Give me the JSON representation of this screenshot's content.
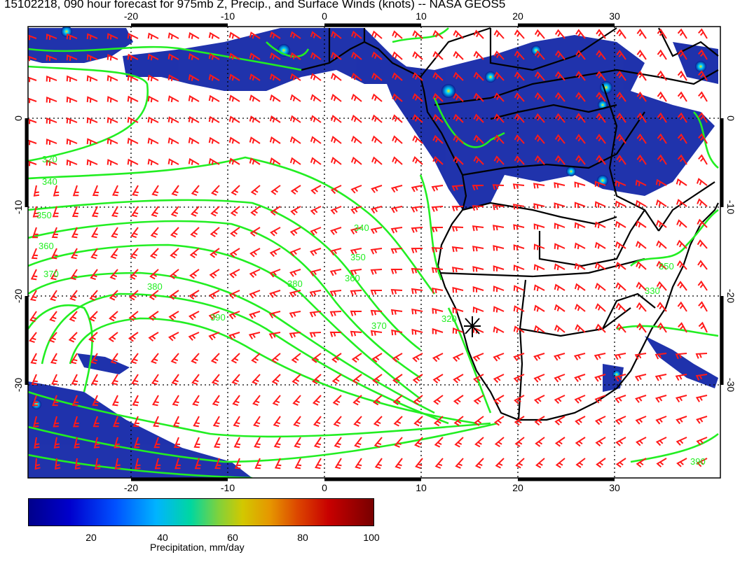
{
  "title": "15102218, 090 hour forecast for 975mb Z, Precip., and Surface Winds (knots) -- NASA GEOS5",
  "map": {
    "lon_range": [
      -30,
      41
    ],
    "lat_range": [
      -40,
      10
    ],
    "top_lon_ticks": [
      "-20",
      "-10",
      "0",
      "10",
      "20",
      "30"
    ],
    "bottom_lon_ticks": [
      "-20",
      "-10",
      "0",
      "10",
      "20",
      "30"
    ],
    "left_lat_ticks": [
      "0",
      "-10",
      "-20",
      "-30"
    ],
    "right_lat_ticks": [
      "0",
      "-10",
      "-20",
      "-30"
    ],
    "contour_labels": [
      "320",
      "340",
      "350",
      "360",
      "370",
      "380",
      "390",
      "340",
      "350",
      "360",
      "370",
      "320",
      "380",
      "330",
      "350",
      "390"
    ],
    "colors": {
      "contour": "#22ee22",
      "wind_barb": "#ff1a1a",
      "coast": "#000000"
    },
    "marker": "station-asterisk-icon"
  },
  "colorbar": {
    "ticks": [
      "20",
      "40",
      "60",
      "80",
      "100"
    ],
    "label": "Precipitation, mm/day"
  }
}
